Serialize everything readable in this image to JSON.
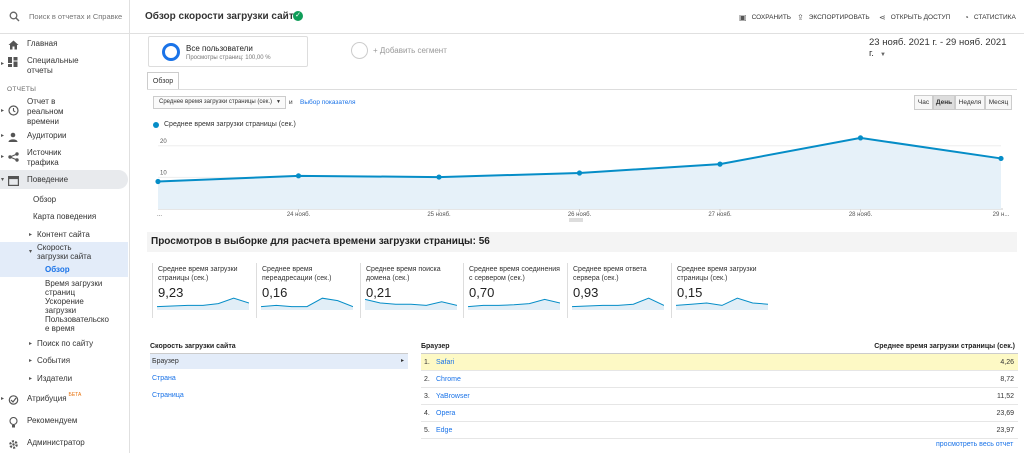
{
  "sidebar": {
    "search_placeholder": "Поиск в отчетах и Справке",
    "home": "Главная",
    "custom_reports": [
      "Специальные",
      "отчеты"
    ],
    "section_reports": "ОТЧЕТЫ",
    "realtime": [
      "Отчет в",
      "реальном",
      "времени"
    ],
    "audience": "Аудитории",
    "acquisition": [
      "Источник",
      "трафика"
    ],
    "behavior": "Поведение",
    "behavior_items": {
      "overview": "Обзор",
      "flow": "Карта поведения",
      "site_content": "Контент сайта",
      "site_speed": [
        "Скорость",
        "загрузки сайта"
      ],
      "speed_overview": "Обзор",
      "page_timings": [
        "Время загрузки",
        "страниц"
      ],
      "speed_suggestions": [
        "Ускорение",
        "загрузки"
      ],
      "user_timings": [
        "Пользовательско",
        "е время"
      ],
      "site_search": "Поиск по сайту",
      "events": "События",
      "publisher": "Издатели"
    },
    "attribution": "Атрибуция",
    "attribution_badge": "БЕТА",
    "discover": "Рекомендуем",
    "admin": "Администратор"
  },
  "header": {
    "title": "Обзор скорости загрузки сайта",
    "save": "СОХРАНИТЬ",
    "export": "ЭКСПОРТИРОВАТЬ",
    "share": "ОТКРЫТЬ ДОСТУП",
    "insights": "СТАТИСТИКА"
  },
  "segment": {
    "name": "Все пользователи",
    "sub": "Просмотры страниц: 100,00 %",
    "add": "+ Добавить сегмент"
  },
  "date_range": "23 нояб. 2021 г. - 29 нояб. 2021 г.",
  "tabs": {
    "overview": "Обзор"
  },
  "controls": {
    "metric": "Среднее время загрузки страницы (сек.)",
    "and": "и",
    "choose_metric": "Выбор показателя",
    "granularity": [
      "Час",
      "День",
      "Неделя",
      "Месяц"
    ],
    "granularity_active": "День"
  },
  "chart_data": {
    "type": "area",
    "series": [
      {
        "name": "Среднее время загрузки страницы (сек.)",
        "values": [
          8.7,
          10.5,
          10.1,
          11.4,
          14.2,
          22.5,
          16.0
        ]
      }
    ],
    "x": [
      "23 нояб.",
      "24 нояб.",
      "25 нояб.",
      "26 нояб.",
      "27 нояб.",
      "28 нояб.",
      "29 нояб."
    ],
    "x_tick_labels": [
      "...",
      "24 нояб.",
      "25 нояб.",
      "26 нояб.",
      "27 нояб.",
      "28 нояб.",
      "29 н..."
    ],
    "y_ticks": [
      "10",
      "20"
    ],
    "ylim": [
      0,
      25
    ],
    "color": "#058dc7"
  },
  "sample_text": "Просмотров в выборке для расчета времени загрузки страницы: 56",
  "cards": [
    {
      "title": "Среднее время загрузки страницы (сек.)",
      "value": "9,23",
      "spark": [
        0.2,
        0.25,
        0.3,
        0.3,
        0.45,
        0.9,
        0.5
      ]
    },
    {
      "title": "Среднее время переадресации (сек.)",
      "value": "0,16",
      "spark": [
        0.2,
        0.3,
        0.2,
        0.2,
        0.9,
        0.7,
        0.2
      ]
    },
    {
      "title": "Среднее время поиска домена (сек.)",
      "value": "0,21",
      "spark": [
        0.8,
        0.5,
        0.4,
        0.4,
        0.3,
        0.6,
        0.3
      ]
    },
    {
      "title": "Среднее время соединения с сервером (сек.)",
      "value": "0,70",
      "spark": [
        0.2,
        0.3,
        0.3,
        0.35,
        0.45,
        0.8,
        0.5
      ]
    },
    {
      "title": "Среднее время ответа сервера (сек.)",
      "value": "0,93",
      "spark": [
        0.2,
        0.25,
        0.3,
        0.3,
        0.4,
        0.9,
        0.3
      ]
    },
    {
      "title": "Среднее время загрузки страницы (сек.)",
      "value": "0,15",
      "spark": [
        0.3,
        0.4,
        0.5,
        0.3,
        0.9,
        0.5,
        0.4
      ]
    }
  ],
  "left_table": {
    "header": "Скорость загрузки сайта",
    "rows": [
      "Браузер",
      "Страна",
      "Страница"
    ]
  },
  "right_table": {
    "header_left": "Браузер",
    "header_right": "Среднее время загрузки страницы (сек.)",
    "rows": [
      {
        "num": "1.",
        "name": "Safari",
        "value": "4,26"
      },
      {
        "num": "2.",
        "name": "Chrome",
        "value": "8,72"
      },
      {
        "num": "3.",
        "name": "YaBrowser",
        "value": "11,52"
      },
      {
        "num": "4.",
        "name": "Opera",
        "value": "23,69"
      },
      {
        "num": "5.",
        "name": "Edge",
        "value": "23,97"
      }
    ],
    "view_all": "просмотреть весь отчет"
  }
}
